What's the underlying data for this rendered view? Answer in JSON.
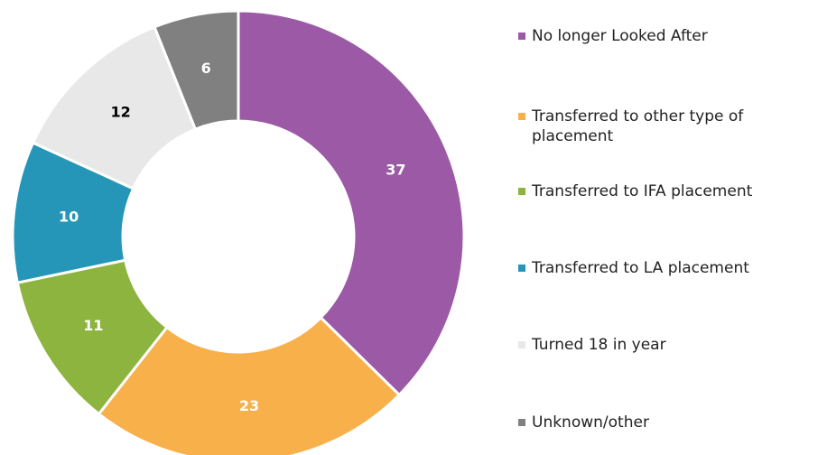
{
  "chart_data": {
    "type": "donut",
    "categories": [
      "No longer Looked After",
      "Transferred to other type of placement",
      "Transferred to IFA placement",
      "Transferred to LA placement",
      "Turned 18 in year",
      "Unknown/other"
    ],
    "values": [
      37,
      23,
      11,
      10,
      12,
      6
    ],
    "colors": [
      "#9b59a6",
      "#f8b04b",
      "#8db43e",
      "#2596b8",
      "#e8e8e8",
      "#808080"
    ],
    "label_colors": [
      "#ffffff",
      "#ffffff",
      "#ffffff",
      "#ffffff",
      "#000000",
      "#ffffff"
    ],
    "legend": "right"
  }
}
